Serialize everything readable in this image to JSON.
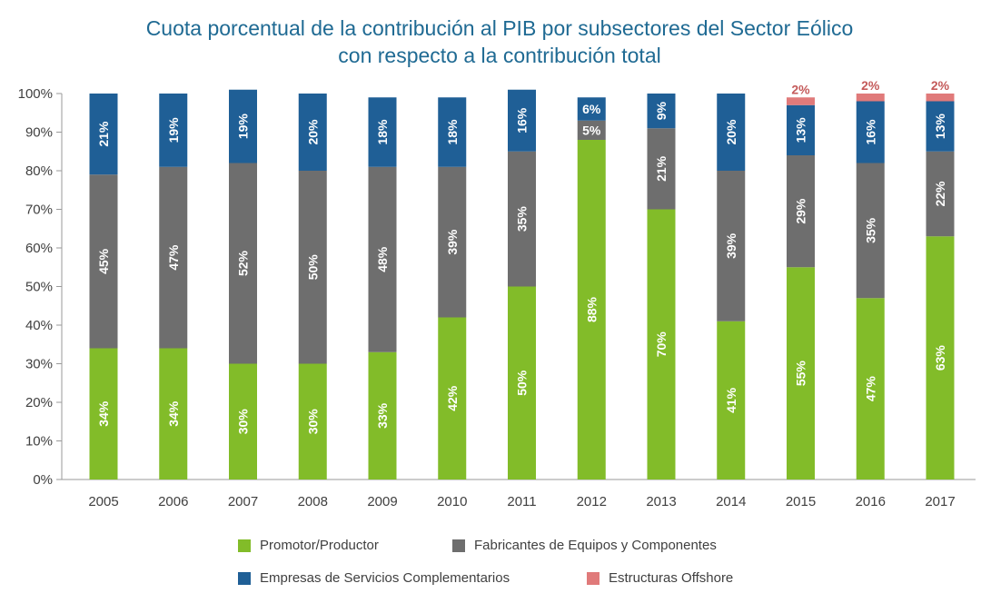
{
  "chart_data": {
    "type": "bar",
    "stacked": true,
    "title_line1": "Cuota porcentual de la contribución al PIB por subsectores del Sector Eólico",
    "title_line2": "con respecto a la contribución total",
    "categories": [
      "2005",
      "2006",
      "2007",
      "2008",
      "2009",
      "2010",
      "2011",
      "2012",
      "2013",
      "2014",
      "2015",
      "2016",
      "2017"
    ],
    "yticks": [
      "0%",
      "10%",
      "20%",
      "30%",
      "40%",
      "50%",
      "60%",
      "70%",
      "80%",
      "90%",
      "100%"
    ],
    "ylim": [
      0,
      100
    ],
    "grid": false,
    "legend_position": "bottom",
    "series": [
      {
        "name": "Promotor/Productor",
        "color": "#82bc29",
        "values": [
          34,
          34,
          30,
          30,
          33,
          42,
          50,
          88,
          70,
          41,
          55,
          47,
          63
        ],
        "labels": [
          "34%",
          "34%",
          "30%",
          "30%",
          "33%",
          "42%",
          "50%",
          "88%",
          "70%",
          "41%",
          "55%",
          "47%",
          "63%"
        ]
      },
      {
        "name": "Fabricantes de Equipos y Componentes",
        "color": "#6e6e6e",
        "values": [
          45,
          47,
          52,
          50,
          48,
          39,
          35,
          5,
          21,
          39,
          29,
          35,
          22
        ],
        "labels": [
          "45%",
          "47%",
          "52%",
          "50%",
          "48%",
          "39%",
          "35%",
          "5%",
          "21%",
          "39%",
          "29%",
          "35%",
          "22%"
        ]
      },
      {
        "name": "Empresas de Servicios Complementarios",
        "color": "#1f5f96",
        "values": [
          21,
          19,
          19,
          20,
          18,
          18,
          16,
          6,
          9,
          20,
          13,
          16,
          13
        ],
        "labels": [
          "21%",
          "19%",
          "19%",
          "20%",
          "18%",
          "18%",
          "16%",
          "6%",
          "9%",
          "20%",
          "13%",
          "16%",
          "13%"
        ]
      },
      {
        "name": "Estructuras Offshore",
        "color": "#e07a7a",
        "values": [
          0,
          0,
          0,
          0,
          0,
          0,
          0,
          0,
          0,
          0,
          2,
          2,
          2
        ],
        "labels": [
          "",
          "",
          "",
          "",
          "",
          "",
          "",
          "",
          "",
          "",
          "2%",
          "2%",
          "2%"
        ]
      }
    ]
  }
}
